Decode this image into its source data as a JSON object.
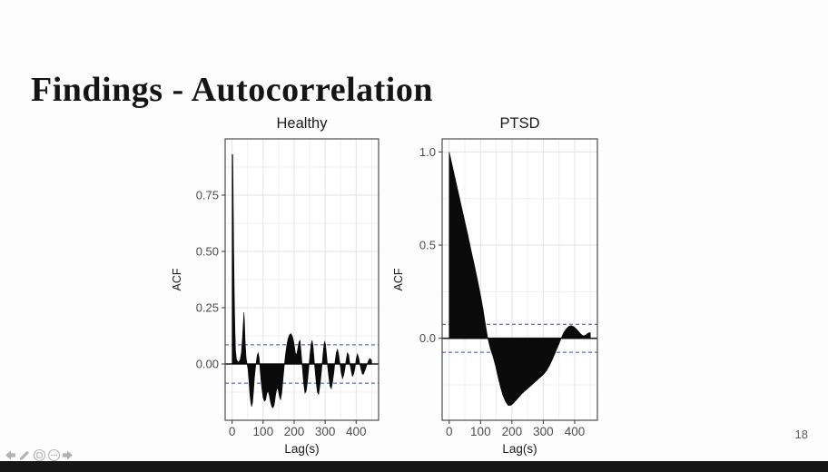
{
  "slide": {
    "title": "Findings - Autocorrelation",
    "page_number": "18"
  },
  "toolbar": {
    "items": [
      {
        "name": "previous-slide"
      },
      {
        "name": "pen"
      },
      {
        "name": "show-all-slides"
      },
      {
        "name": "more-options"
      },
      {
        "name": "next-slide"
      }
    ]
  },
  "colors": {
    "series": "#0a0a0a",
    "grid_major": "#e2e2e2",
    "grid_minor": "#f0f0f0",
    "panel_border": "#4d4d4d",
    "panel_bg": "#ffffff",
    "conf_line": "#3a4fa8",
    "zero_line": "#1a1a1a",
    "tick_mark": "#333333",
    "tick_text": "#4d4d4d",
    "title_text": "#1a1a1a",
    "page_number": "#5f5f5f",
    "toolbar_icon": "#b2b2b2",
    "bottom_bar": "#161616"
  },
  "chart_data": [
    {
      "type": "area",
      "title": "Healthy",
      "xlabel": "Lag(s)",
      "ylabel": "ACF",
      "xlim": [
        -22.5,
        472.5
      ],
      "ylim": [
        -0.25,
        1.0
      ],
      "grid": true,
      "xticks": [
        {
          "v": 0,
          "label": "0"
        },
        {
          "v": 100,
          "label": "100"
        },
        {
          "v": 200,
          "label": "200"
        },
        {
          "v": 300,
          "label": "300"
        },
        {
          "v": 400,
          "label": "400"
        }
      ],
      "yticks": [
        {
          "v": 0,
          "label": "0.00"
        },
        {
          "v": 0.25,
          "label": "0.25"
        },
        {
          "v": 0.5,
          "label": "0.50"
        },
        {
          "v": 0.75,
          "label": "0.75"
        }
      ],
      "minor_xticks": [
        50,
        150,
        250,
        350,
        450
      ],
      "minor_yticks": [
        -0.125,
        0.125,
        0.375,
        0.625,
        0.875
      ],
      "confidence_band": 0.085,
      "series": [
        [
          0,
          0.93
        ],
        [
          2,
          0.93
        ],
        [
          3,
          0.8
        ],
        [
          5,
          0.52
        ],
        [
          7,
          0.3
        ],
        [
          9,
          0.15
        ],
        [
          11,
          0.06
        ],
        [
          14,
          0.02
        ],
        [
          18,
          0.01
        ],
        [
          22,
          0.01
        ],
        [
          26,
          0.02
        ],
        [
          30,
          0.05
        ],
        [
          33,
          0.11
        ],
        [
          36,
          0.18
        ],
        [
          38,
          0.23
        ],
        [
          40,
          0.18
        ],
        [
          42,
          0.1
        ],
        [
          45,
          0.03
        ],
        [
          48,
          0.0
        ],
        [
          51,
          -0.02
        ],
        [
          54,
          -0.07
        ],
        [
          57,
          -0.13
        ],
        [
          60,
          -0.17
        ],
        [
          63,
          -0.19
        ],
        [
          66,
          -0.17
        ],
        [
          69,
          -0.12
        ],
        [
          72,
          -0.06
        ],
        [
          75,
          -0.02
        ],
        [
          78,
          0.01
        ],
        [
          81,
          0.04
        ],
        [
          84,
          0.05
        ],
        [
          87,
          0.03
        ],
        [
          90,
          -0.02
        ],
        [
          93,
          -0.07
        ],
        [
          96,
          -0.11
        ],
        [
          100,
          -0.15
        ],
        [
          104,
          -0.165
        ],
        [
          108,
          -0.16
        ],
        [
          112,
          -0.13
        ],
        [
          116,
          -0.12
        ],
        [
          120,
          -0.14
        ],
        [
          124,
          -0.17
        ],
        [
          128,
          -0.19
        ],
        [
          132,
          -0.195
        ],
        [
          136,
          -0.18
        ],
        [
          140,
          -0.14
        ],
        [
          144,
          -0.11
        ],
        [
          148,
          -0.11
        ],
        [
          152,
          -0.14
        ],
        [
          156,
          -0.16
        ],
        [
          160,
          -0.13
        ],
        [
          164,
          -0.07
        ],
        [
          168,
          -0.01
        ],
        [
          172,
          0.04
        ],
        [
          176,
          0.08
        ],
        [
          180,
          0.11
        ],
        [
          185,
          0.13
        ],
        [
          190,
          0.135
        ],
        [
          195,
          0.12
        ],
        [
          200,
          0.09
        ],
        [
          204,
          0.05
        ],
        [
          208,
          0.04
        ],
        [
          212,
          0.07
        ],
        [
          216,
          0.1
        ],
        [
          219,
          0.105
        ],
        [
          222,
          0.06
        ],
        [
          225,
          0.01
        ],
        [
          228,
          -0.04
        ],
        [
          231,
          -0.09
        ],
        [
          235,
          -0.13
        ],
        [
          239,
          -0.12
        ],
        [
          243,
          -0.08
        ],
        [
          247,
          -0.02
        ],
        [
          251,
          0.04
        ],
        [
          255,
          0.09
        ],
        [
          258,
          0.105
        ],
        [
          261,
          0.08
        ],
        [
          264,
          0.03
        ],
        [
          267,
          -0.02
        ],
        [
          271,
          -0.08
        ],
        [
          275,
          -0.125
        ],
        [
          279,
          -0.135
        ],
        [
          283,
          -0.1
        ],
        [
          287,
          -0.05
        ],
        [
          291,
          0.01
        ],
        [
          295,
          0.07
        ],
        [
          298,
          0.1
        ],
        [
          301,
          0.09
        ],
        [
          304,
          0.05
        ],
        [
          308,
          -0.01
        ],
        [
          312,
          -0.06
        ],
        [
          316,
          -0.1
        ],
        [
          320,
          -0.11
        ],
        [
          324,
          -0.08
        ],
        [
          328,
          -0.04
        ],
        [
          332,
          0.01
        ],
        [
          336,
          0.05
        ],
        [
          340,
          0.065
        ],
        [
          344,
          0.04
        ],
        [
          348,
          0.0
        ],
        [
          352,
          -0.04
        ],
        [
          356,
          -0.065
        ],
        [
          360,
          -0.05
        ],
        [
          364,
          -0.02
        ],
        [
          368,
          0.02
        ],
        [
          372,
          0.05
        ],
        [
          376,
          0.04
        ],
        [
          380,
          0.0
        ],
        [
          384,
          -0.03
        ],
        [
          388,
          -0.055
        ],
        [
          392,
          -0.045
        ],
        [
          396,
          -0.02
        ],
        [
          400,
          0.02
        ],
        [
          404,
          0.045
        ],
        [
          408,
          0.03
        ],
        [
          412,
          0.0
        ],
        [
          416,
          -0.025
        ],
        [
          420,
          -0.045
        ],
        [
          424,
          -0.045
        ],
        [
          428,
          -0.03
        ],
        [
          432,
          -0.015
        ],
        [
          436,
          0.0
        ],
        [
          440,
          0.015
        ],
        [
          444,
          0.025
        ],
        [
          448,
          0.02
        ],
        [
          450,
          0.015
        ]
      ]
    },
    {
      "type": "area",
      "title": "PTSD",
      "xlabel": "Lag(s)",
      "ylabel": "ACF",
      "xlim": [
        -22.5,
        472.5
      ],
      "ylim": [
        -0.44,
        1.07
      ],
      "grid": true,
      "xticks": [
        {
          "v": 0,
          "label": "0"
        },
        {
          "v": 100,
          "label": "100"
        },
        {
          "v": 200,
          "label": "200"
        },
        {
          "v": 300,
          "label": "300"
        },
        {
          "v": 400,
          "label": "400"
        }
      ],
      "yticks": [
        {
          "v": 0,
          "label": "0.0"
        },
        {
          "v": 0.5,
          "label": "0.5"
        },
        {
          "v": 1.0,
          "label": "1.0"
        }
      ],
      "minor_xticks": [
        50,
        150,
        250,
        350,
        450
      ],
      "minor_yticks": [
        -0.25,
        0.25,
        0.75
      ],
      "confidence_band": 0.075,
      "series": [
        [
          0,
          1.0
        ],
        [
          10,
          0.925
        ],
        [
          20,
          0.85
        ],
        [
          30,
          0.775
        ],
        [
          40,
          0.7
        ],
        [
          50,
          0.625
        ],
        [
          60,
          0.55
        ],
        [
          70,
          0.47
        ],
        [
          80,
          0.395
        ],
        [
          90,
          0.315
        ],
        [
          100,
          0.23
        ],
        [
          108,
          0.155
        ],
        [
          115,
          0.08
        ],
        [
          122,
          0.01
        ],
        [
          126,
          -0.02
        ],
        [
          132,
          -0.06
        ],
        [
          140,
          -0.1
        ],
        [
          148,
          -0.15
        ],
        [
          156,
          -0.21
        ],
        [
          164,
          -0.265
        ],
        [
          172,
          -0.31
        ],
        [
          180,
          -0.34
        ],
        [
          188,
          -0.36
        ],
        [
          196,
          -0.36
        ],
        [
          204,
          -0.35
        ],
        [
          212,
          -0.335
        ],
        [
          220,
          -0.32
        ],
        [
          230,
          -0.3
        ],
        [
          240,
          -0.285
        ],
        [
          250,
          -0.27
        ],
        [
          260,
          -0.255
        ],
        [
          270,
          -0.24
        ],
        [
          280,
          -0.225
        ],
        [
          290,
          -0.21
        ],
        [
          300,
          -0.195
        ],
        [
          310,
          -0.175
        ],
        [
          320,
          -0.145
        ],
        [
          330,
          -0.11
        ],
        [
          340,
          -0.07
        ],
        [
          350,
          -0.03
        ],
        [
          357,
          0.0
        ],
        [
          365,
          0.03
        ],
        [
          373,
          0.05
        ],
        [
          381,
          0.063
        ],
        [
          389,
          0.068
        ],
        [
          397,
          0.062
        ],
        [
          405,
          0.05
        ],
        [
          413,
          0.035
        ],
        [
          421,
          0.02
        ],
        [
          428,
          0.013
        ],
        [
          434,
          0.016
        ],
        [
          440,
          0.024
        ],
        [
          446,
          0.03
        ],
        [
          450,
          0.03
        ]
      ]
    }
  ]
}
